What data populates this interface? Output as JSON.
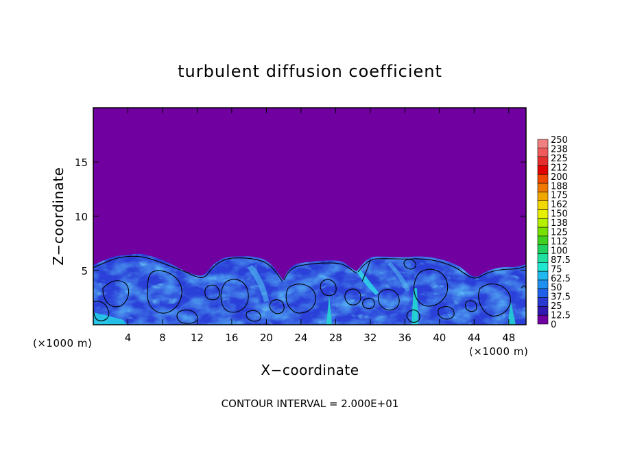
{
  "chart_data": {
    "type": "heatmap",
    "title": "turbulent diffusion coefficient",
    "xlabel": "X−coordinate",
    "ylabel": "Z−coordinate",
    "x_unit_left": "(×1000 m)",
    "x_unit_right": "(×1000 m)",
    "xlim": [
      0,
      50
    ],
    "ylim": [
      0,
      20
    ],
    "x_ticks": [
      "4",
      "8",
      "12",
      "16",
      "20",
      "24",
      "28",
      "32",
      "36",
      "40",
      "44",
      "48"
    ],
    "x_tick_values": [
      4,
      8,
      12,
      16,
      20,
      24,
      28,
      32,
      36,
      40,
      44,
      48
    ],
    "y_ticks": [
      "5",
      "10",
      "15"
    ],
    "y_tick_values": [
      5,
      10,
      15
    ],
    "colorbar_labels": [
      "250",
      "238",
      "225",
      "212",
      "200",
      "188",
      "175",
      "162",
      "150",
      "138",
      "125",
      "112",
      "100",
      "87.5",
      "75",
      "62.5",
      "50",
      "37.5",
      "25",
      "12.5",
      "0"
    ],
    "colorbar_colors": [
      "#f08080",
      "#f05a5a",
      "#e62e2e",
      "#e00000",
      "#f04a00",
      "#f07800",
      "#f0a800",
      "#f0d800",
      "#e6f000",
      "#b4f000",
      "#78e000",
      "#40d020",
      "#20d060",
      "#20e0a0",
      "#20e8d0",
      "#20b8f0",
      "#2090f0",
      "#2060e8",
      "#2838d0",
      "#3018b0",
      "#7000a0"
    ],
    "background_value_color": "#7000a0",
    "footer": "CONTOUR INTERVAL = 2.000E+01"
  }
}
